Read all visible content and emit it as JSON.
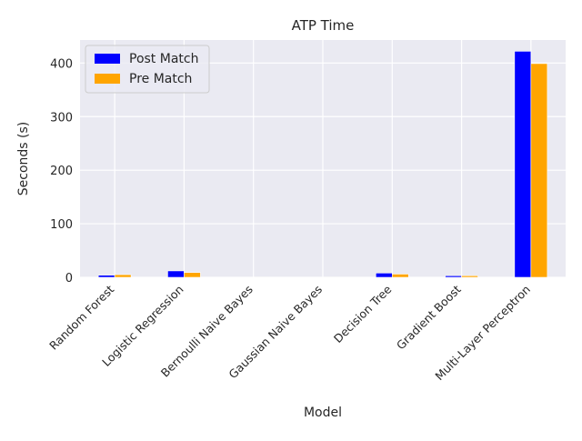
{
  "chart_data": {
    "type": "bar",
    "title": "ATP Time",
    "xlabel": "Model",
    "ylabel": "Seconds (s)",
    "categories": [
      "Random Forest",
      "Logistic Regression",
      "Bernoulli Naive Bayes",
      "Gaussian Naive Bayes",
      "Decision Tree",
      "Gradient Boost",
      "Multi-Layer Perceptron"
    ],
    "series": [
      {
        "name": "Post Match",
        "color": "#0000ff",
        "values": [
          4,
          12,
          0.3,
          0.3,
          8,
          3,
          422
        ]
      },
      {
        "name": "Pre Match",
        "color": "#ffa500",
        "values": [
          5,
          9,
          0.3,
          0.3,
          6,
          3,
          399
        ]
      }
    ],
    "ylim": [
      0,
      443
    ],
    "yticks": [
      0,
      100,
      200,
      300,
      400
    ],
    "grid": true,
    "legend_position": "top-left",
    "background": "#eaeaf2",
    "grid_color": "#ffffff"
  }
}
